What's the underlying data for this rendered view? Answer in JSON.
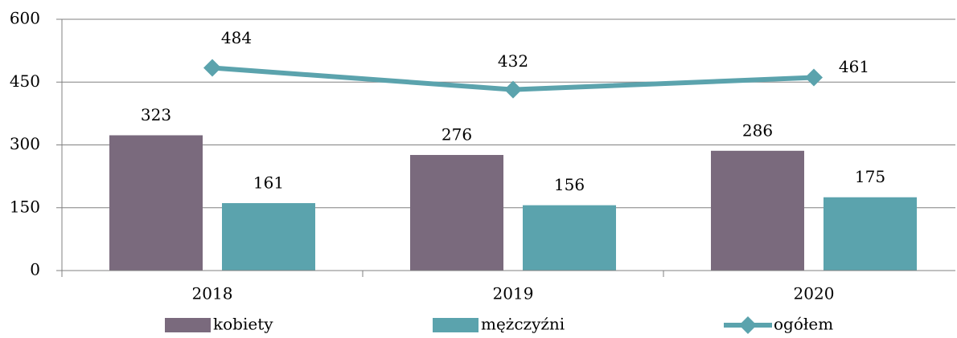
{
  "chart_data": {
    "type": "bar",
    "categories": [
      "2018",
      "2019",
      "2020"
    ],
    "series": [
      {
        "name": "kobiety",
        "color": "#7a6a7d",
        "values": [
          323,
          276,
          286
        ]
      },
      {
        "name": "mężczyźni",
        "color": "#5ba3ad",
        "values": [
          161,
          156,
          175
        ]
      },
      {
        "name": "ogółem",
        "type": "line",
        "color": "#5ba3ad",
        "values": [
          484,
          432,
          461
        ]
      }
    ],
    "ylim": [
      0,
      600
    ],
    "yticks": [
      0,
      150,
      300,
      450,
      600
    ],
    "grid": true,
    "legend": "bottom"
  }
}
